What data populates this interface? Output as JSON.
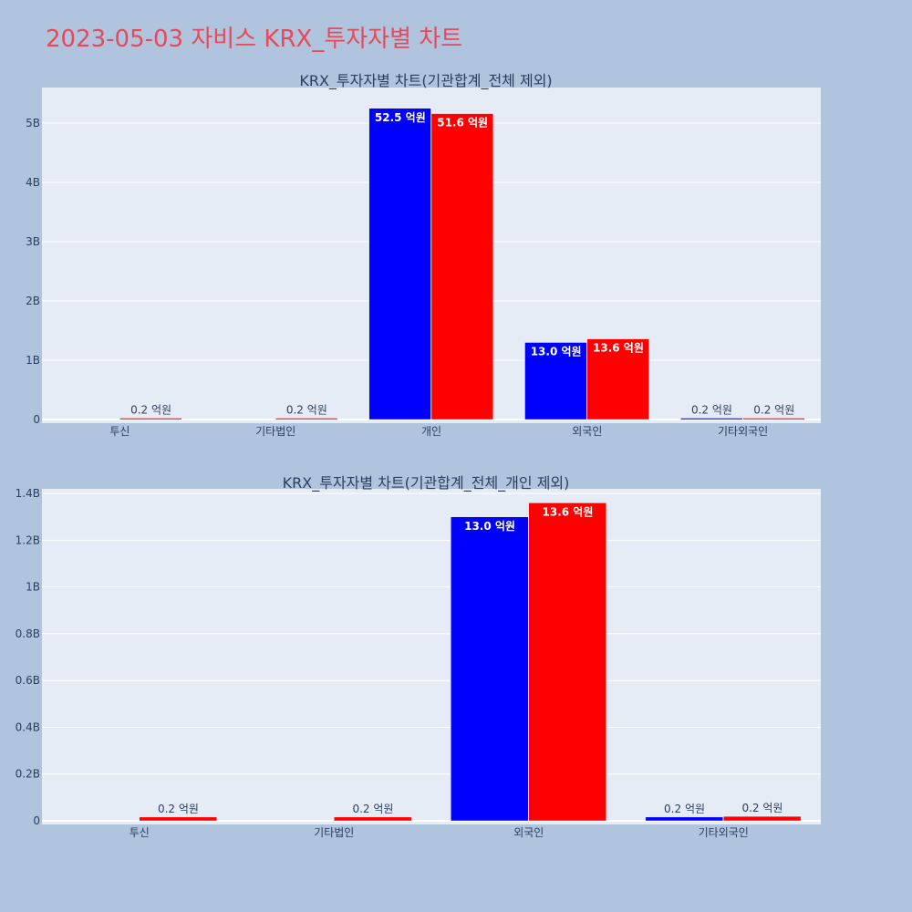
{
  "page": {
    "title": "2023-05-03 자비스 KRX_투자자별 차트"
  },
  "colors": {
    "background": "#b0c4de",
    "plot_bg": "#e5ecf6",
    "title": "#e8495a",
    "series_a": "#0000ff",
    "series_b": "#ff0000",
    "text": "#2a3f5f"
  },
  "chart_data": [
    {
      "type": "bar",
      "title": "KRX_투자자별 차트(기관합계_전체 제외)",
      "categories": [
        "투신",
        "기타법인",
        "개인",
        "외국인",
        "기타외국인"
      ],
      "ylim": [
        0,
        5600000000
      ],
      "yticks": [
        0,
        1000000000,
        2000000000,
        3000000000,
        4000000000,
        5000000000
      ],
      "ytick_labels": [
        "0",
        "1B",
        "2B",
        "3B",
        "4B",
        "5B"
      ],
      "grid": true,
      "series": [
        {
          "color": "#0000ff",
          "values": [
            null,
            null,
            5250000000,
            1300000000,
            20000000
          ],
          "labels": [
            "",
            "",
            "52.5 억원",
            "13.0 억원",
            "0.2 억원"
          ]
        },
        {
          "color": "#ff0000",
          "values": [
            20000000,
            20000000,
            5160000000,
            1360000000,
            20000000
          ],
          "labels": [
            "0.2 억원",
            "0.2 억원",
            "51.6 억원",
            "13.6 억원",
            "0.2 억원"
          ]
        }
      ]
    },
    {
      "type": "bar",
      "title": "KRX_투자자별 차트(기관합계_전체_개인 제외)",
      "categories": [
        "투신",
        "기타법인",
        "외국인",
        "기타외국인"
      ],
      "ylim": [
        0,
        1420000000
      ],
      "yticks": [
        0,
        200000000,
        400000000,
        600000000,
        800000000,
        1000000000,
        1200000000,
        1400000000
      ],
      "ytick_labels": [
        "0",
        "0.2B",
        "0.4B",
        "0.6B",
        "0.8B",
        "1B",
        "1.2B",
        "1.4B"
      ],
      "grid": true,
      "series": [
        {
          "color": "#0000ff",
          "values": [
            null,
            null,
            1300000000,
            16000000
          ],
          "labels": [
            "",
            "",
            "13.0 억원",
            "0.2 억원"
          ]
        },
        {
          "color": "#ff0000",
          "values": [
            16000000,
            16000000,
            1360000000,
            19000000
          ],
          "labels": [
            "0.2 억원",
            "0.2 억원",
            "13.6 억원",
            "0.2 억원"
          ]
        }
      ]
    }
  ]
}
